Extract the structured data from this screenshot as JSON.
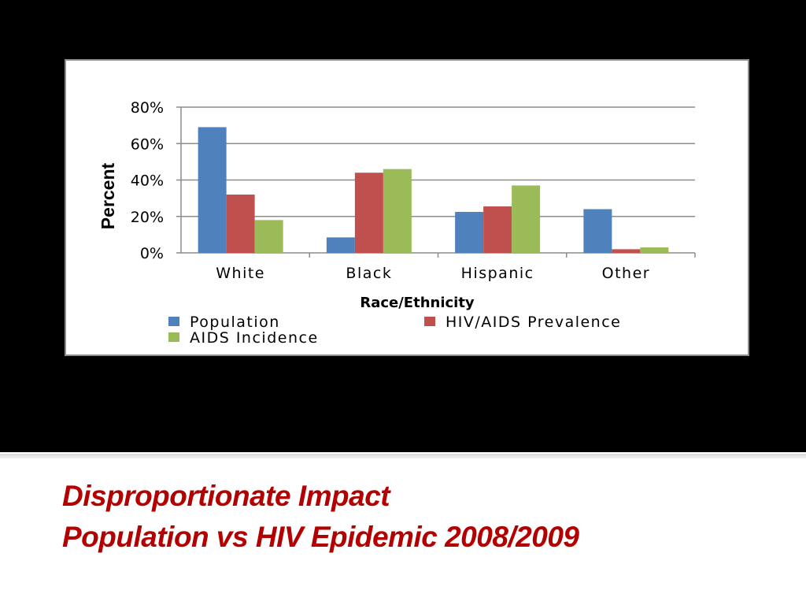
{
  "slide": {
    "title_line1": "Disproportionate Impact",
    "title_line2": "Population vs HIV Epidemic 2008/2009",
    "title_color": "#b30000"
  },
  "chart_data": {
    "type": "bar",
    "categories": [
      "White",
      "Black",
      "Hispanic",
      "Other"
    ],
    "series": [
      {
        "name": "Population",
        "color": "#4f81bd",
        "values": [
          69,
          8.5,
          22.5,
          24
        ]
      },
      {
        "name": "HIV/AIDS Prevalence",
        "color": "#c0504d",
        "values": [
          32,
          44,
          25.5,
          2
        ]
      },
      {
        "name": "AIDS Incidence",
        "color": "#9bbb59",
        "values": [
          18,
          46,
          37,
          3
        ]
      }
    ],
    "title": "",
    "xlabel": "Race/Ethnicity",
    "ylabel": "Percent",
    "ylim": [
      0,
      80
    ],
    "yticks": [
      0,
      20,
      40,
      60,
      80
    ],
    "ytick_labels": [
      "0%",
      "20%",
      "40%",
      "60%",
      "80%"
    ],
    "grid": true,
    "legend_position": "bottom"
  }
}
